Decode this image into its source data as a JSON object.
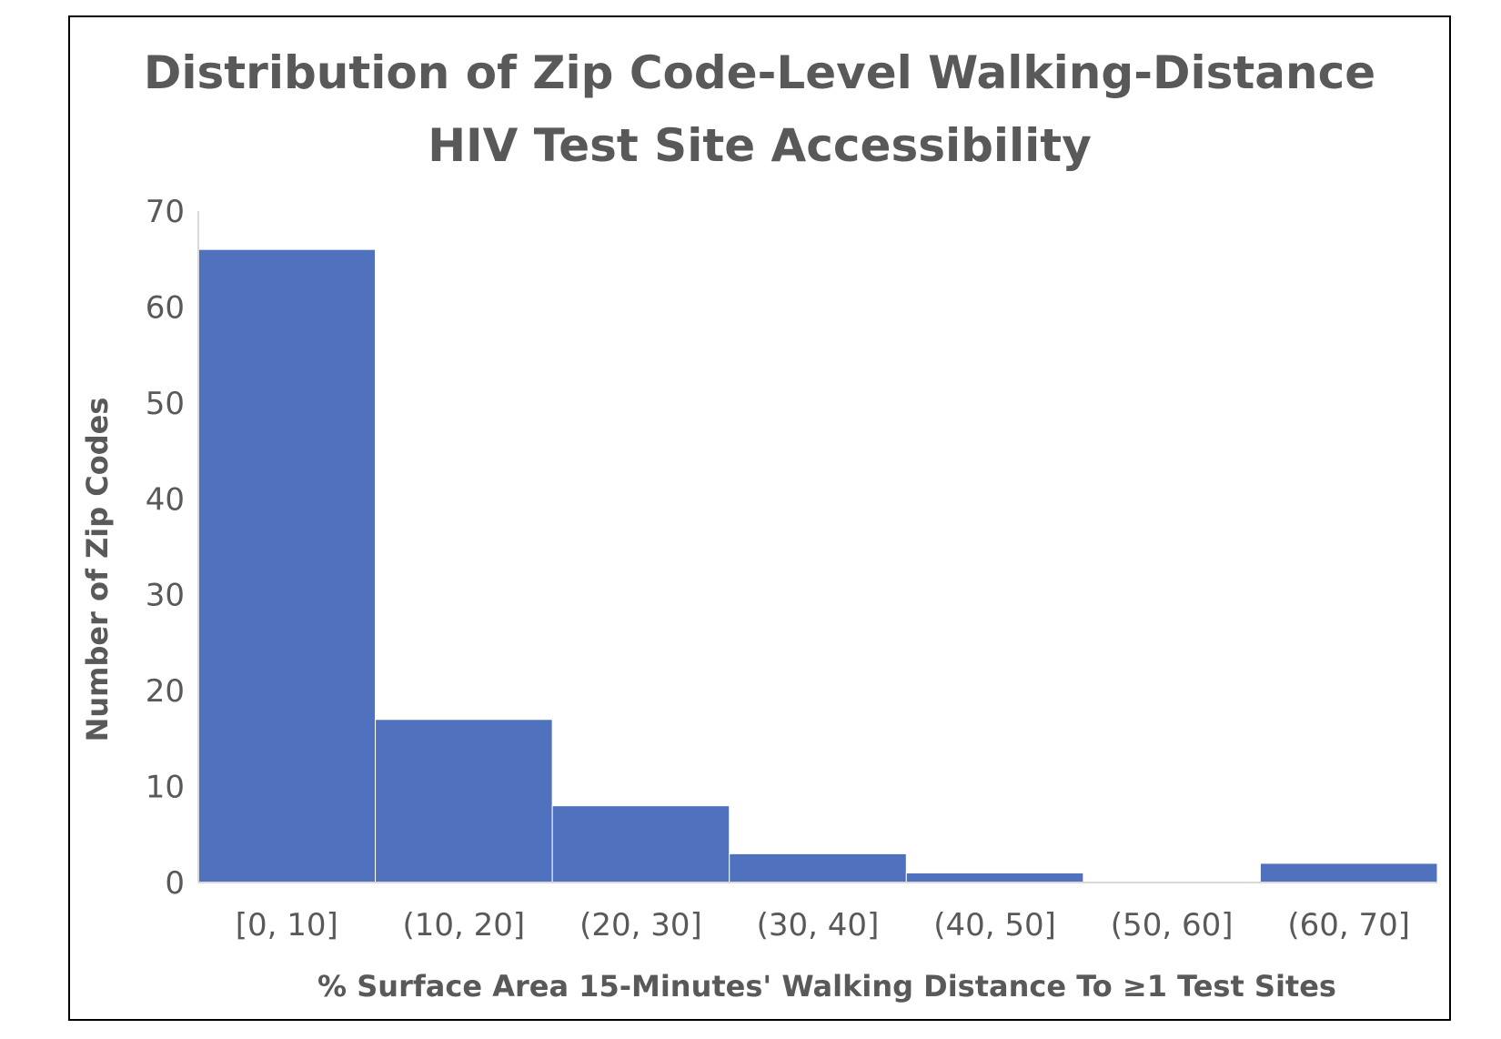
{
  "chart_data": {
    "type": "bar",
    "title_lines": [
      "Distribution of Zip Code-Level Walking-Distance",
      "HIV Test Site Accessibility"
    ],
    "xlabel": "% Surface Area 15-Minutes' Walking Distance To ≥1 Test Sites",
    "ylabel": "Number of Zip Codes",
    "categories": [
      "[0, 10]",
      "(10, 20]",
      "(20, 30]",
      "(30, 40]",
      "(40, 50]",
      "(50, 60]",
      "(60, 70]"
    ],
    "values": [
      66,
      17,
      8,
      3,
      1,
      0,
      2
    ],
    "ylim": [
      0,
      70
    ],
    "yticks": [
      0,
      10,
      20,
      30,
      40,
      50,
      60,
      70
    ],
    "ytick_labels": [
      "0",
      "10",
      "20",
      "30",
      "40",
      "50",
      "60",
      "70"
    ],
    "bar_color": "#4F71BE",
    "grid": false,
    "legend": "none"
  }
}
